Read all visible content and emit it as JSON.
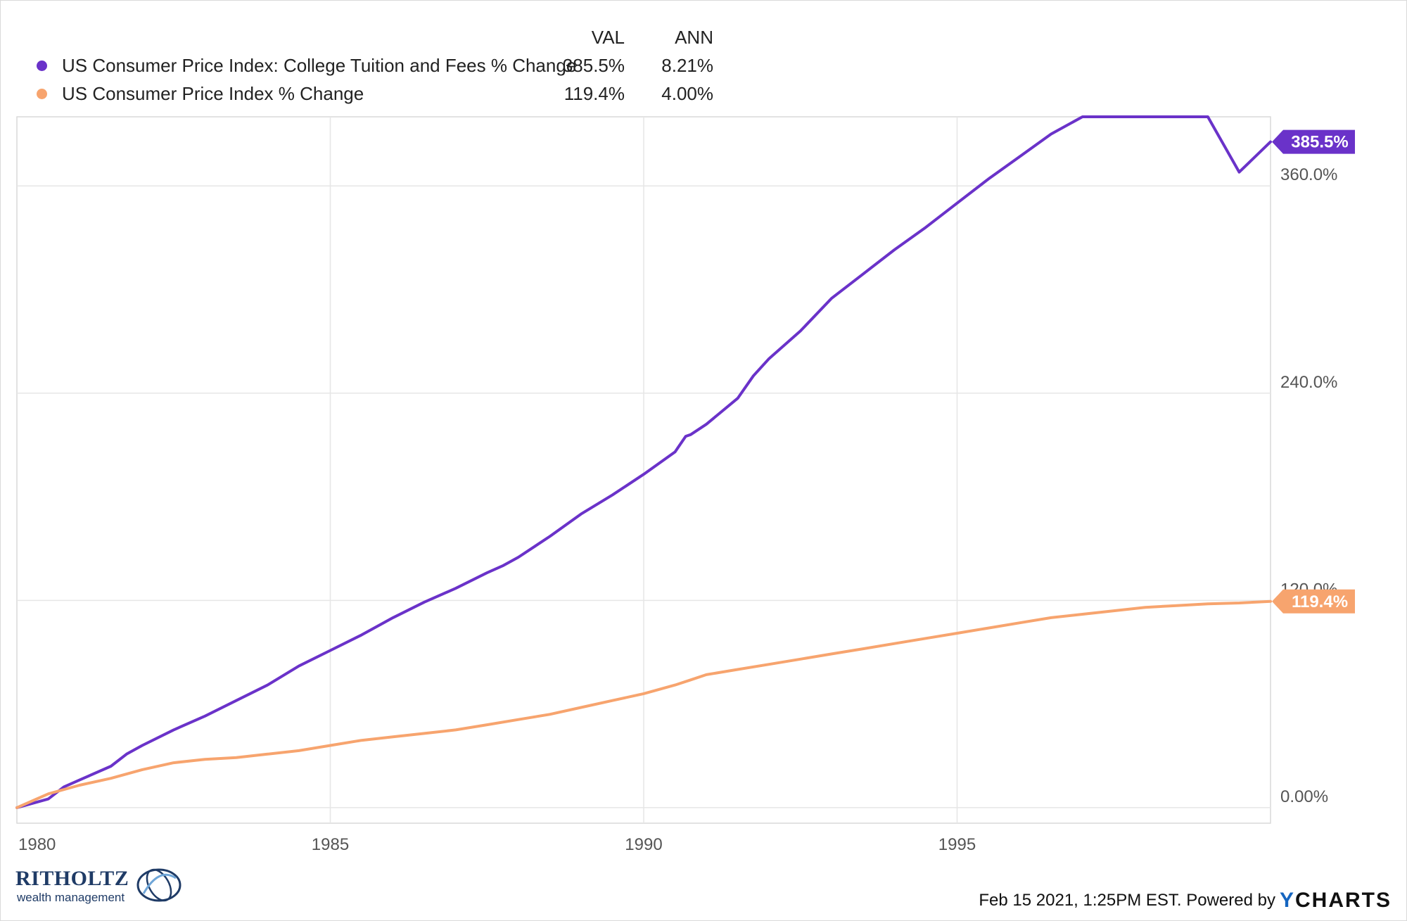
{
  "legend": {
    "col_val": "VAL",
    "col_ann": "ANN",
    "rows": [
      {
        "name": "US Consumer Price Index: College Tuition and Fees % Change",
        "val": "385.5%",
        "ann": "8.21%",
        "color": "#6a32c9"
      },
      {
        "name": "US Consumer Price Index % Change",
        "val": "119.4%",
        "ann": "4.00%",
        "color": "#f7a46e"
      }
    ]
  },
  "footer": {
    "timestamp": "Feb 15 2021, 1:25PM EST. Powered by",
    "brand_y": "Y",
    "brand_rest": "CHARTS"
  },
  "logo": {
    "name": "RITHOLTZ",
    "sub": "wealth management"
  },
  "chart_data": {
    "type": "line",
    "xlim": [
      1980.0,
      2000.0
    ],
    "ylim": [
      -9,
      400
    ],
    "x_ticks": [
      1980,
      1985,
      1990,
      1995
    ],
    "x_tick_labels": [
      "1980",
      "1985",
      "1990",
      "1995"
    ],
    "y_ticks": [
      0,
      120,
      240,
      360
    ],
    "y_tick_labels": [
      "0.00%",
      "120.0%",
      "240.0%",
      "360.0%"
    ],
    "grid": true,
    "series": [
      {
        "name": "US Consumer Price Index: College Tuition and Fees % Change",
        "color": "#6a32c9",
        "end_label": "385.5%",
        "x": [
          1980.0,
          1980.5,
          1980.75,
          1981.0,
          1981.5,
          1981.75,
          1982.0,
          1982.5,
          1983.0,
          1983.5,
          1984.0,
          1984.5,
          1985.0,
          1985.5,
          1986.0,
          1986.5,
          1987.0,
          1987.5,
          1987.75,
          1988.0,
          1988.5,
          1989.0,
          1989.5,
          1990.0,
          1990.5,
          1990.67,
          1990.75,
          1991.0,
          1991.5,
          1991.75,
          1992.0,
          1992.5,
          1993.0,
          1993.5,
          1994.0,
          1994.5,
          1995.0,
          1995.5,
          1996.0,
          1996.5,
          1997.0,
          1997.5,
          1998.0,
          1998.5,
          1998.75,
          1999.0,
          1999.5,
          2000.0
        ],
        "y": [
          0,
          5,
          12,
          16,
          24,
          31,
          36,
          45,
          53,
          62,
          71,
          82,
          91,
          100,
          110,
          119,
          127,
          136,
          140,
          145,
          157,
          170,
          181,
          193,
          206,
          215,
          216,
          222,
          237,
          250,
          260,
          276,
          295,
          309,
          323,
          336,
          350,
          364,
          377,
          390,
          403,
          415,
          426,
          438,
          449,
          455,
          368,
          385.5
        ]
      },
      {
        "name": "US Consumer Price Index % Change",
        "color": "#f7a46e",
        "end_label": "119.4%",
        "x": [
          1980.0,
          1980.5,
          1981.0,
          1981.5,
          1982.0,
          1982.5,
          1983.0,
          1983.5,
          1984.0,
          1984.5,
          1985.0,
          1985.5,
          1986.0,
          1986.5,
          1987.0,
          1987.5,
          1988.0,
          1988.5,
          1989.0,
          1989.5,
          1990.0,
          1990.5,
          1990.75,
          1991.0,
          1991.5,
          1992.0,
          1992.5,
          1993.0,
          1993.5,
          1994.0,
          1994.5,
          1995.0,
          1995.5,
          1996.0,
          1996.5,
          1997.0,
          1997.5,
          1998.0,
          1998.5,
          1999.0,
          1999.5,
          2000.0
        ],
        "y": [
          0,
          8,
          13,
          17,
          22,
          26,
          28,
          29,
          31,
          33,
          36,
          39,
          41,
          43,
          45,
          48,
          51,
          54,
          58,
          62,
          66,
          71,
          74,
          77,
          80,
          83,
          86,
          89,
          92,
          95,
          98,
          101,
          104,
          107,
          110,
          112,
          114,
          116,
          117,
          118,
          118.5,
          119.4
        ]
      }
    ]
  }
}
